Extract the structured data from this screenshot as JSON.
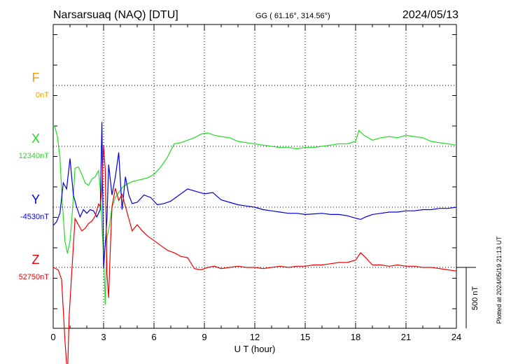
{
  "header": {
    "station": "Narsarsuaq (NAQ)  [DTU]",
    "coords": "GG ( 61.16°, 314.56°)",
    "date": "2024/05/13"
  },
  "footer": {
    "plotted": "Plotted at 2024/05/19 21:13 UT"
  },
  "chart_data": {
    "type": "line",
    "xlabel": "U T (hour)",
    "xlim": [
      0,
      24
    ],
    "xticks": [
      0,
      3,
      6,
      9,
      12,
      15,
      18,
      21,
      24
    ],
    "grid": true,
    "scale_bar_label": "500 nT",
    "scale_bar_nT": 500,
    "series": [
      {
        "name": "F",
        "baseline_label": "0nT",
        "color": "#f5a000",
        "x": [],
        "y": []
      },
      {
        "name": "X",
        "baseline_label": "12340nT",
        "color": "#22dd22",
        "x": [
          0,
          0.1,
          0.25,
          0.4,
          0.55,
          0.7,
          0.85,
          1.0,
          1.15,
          1.3,
          1.5,
          1.7,
          1.9,
          2.1,
          2.3,
          2.5,
          2.7,
          2.8,
          2.9,
          3.0,
          3.1,
          3.2,
          3.35,
          3.5,
          3.7,
          3.9,
          4.1,
          4.4,
          4.7,
          5.0,
          5.3,
          5.6,
          6.0,
          6.4,
          6.8,
          7.2,
          7.6,
          8.0,
          8.4,
          8.8,
          9.2,
          9.6,
          10.0,
          10.5,
          11.0,
          11.5,
          12.0,
          12.5,
          13.0,
          13.5,
          14.0,
          14.5,
          15.0,
          15.5,
          16.0,
          16.5,
          17.0,
          17.5,
          18.0,
          18.2,
          18.5,
          19.0,
          19.5,
          20.0,
          20.5,
          21.0,
          21.5,
          22.0,
          22.5,
          23.0,
          23.5,
          24.0
        ],
        "y": [
          170,
          160,
          80,
          -90,
          -480,
          -780,
          -880,
          -780,
          -520,
          -180,
          -170,
          -230,
          -300,
          -320,
          -270,
          -250,
          -200,
          -350,
          -650,
          -900,
          -1300,
          -750,
          -650,
          -500,
          -420,
          -380,
          -340,
          -310,
          -290,
          -280,
          -270,
          -260,
          -230,
          -170,
          -90,
          20,
          30,
          50,
          70,
          100,
          110,
          90,
          80,
          70,
          40,
          30,
          20,
          10,
          0,
          -10,
          -10,
          -20,
          -10,
          -10,
          0,
          10,
          20,
          20,
          40,
          130,
          90,
          50,
          70,
          80,
          70,
          90,
          80,
          70,
          40,
          30,
          20,
          10
        ]
      },
      {
        "name": "Y",
        "baseline_label": "-4530nT",
        "color": "#0000dd",
        "x": [
          0,
          0.2,
          0.4,
          0.6,
          0.8,
          1.0,
          1.2,
          1.4,
          1.6,
          1.8,
          2.0,
          2.2,
          2.4,
          2.6,
          2.8,
          2.9,
          3.0,
          3.1,
          3.2,
          3.3,
          3.5,
          3.7,
          3.9,
          4.1,
          4.3,
          4.5,
          4.7,
          5.0,
          5.4,
          5.8,
          6.2,
          6.6,
          7.0,
          7.5,
          8.0,
          8.5,
          9.0,
          9.5,
          10.0,
          10.5,
          11.0,
          11.5,
          12.0,
          12.5,
          13.0,
          13.5,
          14.0,
          14.5,
          15.0,
          15.5,
          16.0,
          16.5,
          17.0,
          17.5,
          18.0,
          18.3,
          18.6,
          19.0,
          19.5,
          20.0,
          20.5,
          21.0,
          21.5,
          22.0,
          22.5,
          23.0,
          23.5,
          24.0
        ],
        "y": [
          -150,
          -120,
          -50,
          200,
          150,
          400,
          100,
          0,
          -80,
          -20,
          -50,
          -20,
          -30,
          -80,
          -20,
          700,
          -500,
          -300,
          -100,
          350,
          100,
          250,
          450,
          -20,
          250,
          100,
          30,
          40,
          100,
          80,
          20,
          30,
          50,
          100,
          150,
          130,
          110,
          120,
          60,
          40,
          20,
          10,
          0,
          -20,
          -30,
          -40,
          -50,
          -50,
          -60,
          -55,
          -50,
          -60,
          -60,
          -70,
          -90,
          -100,
          -80,
          -60,
          -50,
          -40,
          -40,
          -30,
          -30,
          -20,
          -20,
          -10,
          -10,
          0
        ]
      },
      {
        "name": "Z",
        "baseline_label": "52750nT",
        "color": "#ee0000",
        "x": [
          0,
          0.3,
          0.5,
          0.7,
          0.85,
          0.95,
          1.1,
          1.3,
          1.5,
          1.7,
          1.9,
          2.1,
          2.3,
          2.5,
          2.7,
          2.8,
          2.9,
          3.0,
          3.1,
          3.2,
          3.3,
          3.4,
          3.5,
          3.7,
          3.9,
          4.1,
          4.3,
          4.5,
          4.7,
          5.0,
          5.3,
          5.6,
          6.0,
          6.4,
          6.8,
          7.2,
          7.6,
          8.0,
          8.4,
          8.8,
          9.2,
          9.6,
          10.0,
          10.5,
          11.0,
          11.5,
          12.0,
          12.5,
          13.0,
          13.5,
          14.0,
          14.5,
          15.0,
          15.5,
          16.0,
          16.5,
          17.0,
          17.5,
          18.0,
          18.3,
          18.6,
          19.0,
          19.5,
          20.0,
          20.5,
          21.0,
          21.5,
          22.0,
          22.5,
          23.0,
          23.5,
          24.0
        ],
        "y": [
          0,
          -20,
          -100,
          -600,
          -900,
          -400,
          -50,
          400,
          350,
          300,
          320,
          360,
          380,
          420,
          520,
          500,
          650,
          1000,
          800,
          -50,
          -250,
          150,
          500,
          650,
          550,
          600,
          500,
          400,
          300,
          350,
          300,
          260,
          220,
          180,
          140,
          120,
          90,
          80,
          -10,
          -20,
          0,
          10,
          -10,
          0,
          10,
          0,
          0,
          -10,
          0,
          10,
          0,
          10,
          10,
          20,
          20,
          30,
          40,
          40,
          60,
          120,
          80,
          20,
          20,
          10,
          20,
          10,
          10,
          0,
          0,
          -10,
          -20,
          -30
        ]
      }
    ]
  }
}
